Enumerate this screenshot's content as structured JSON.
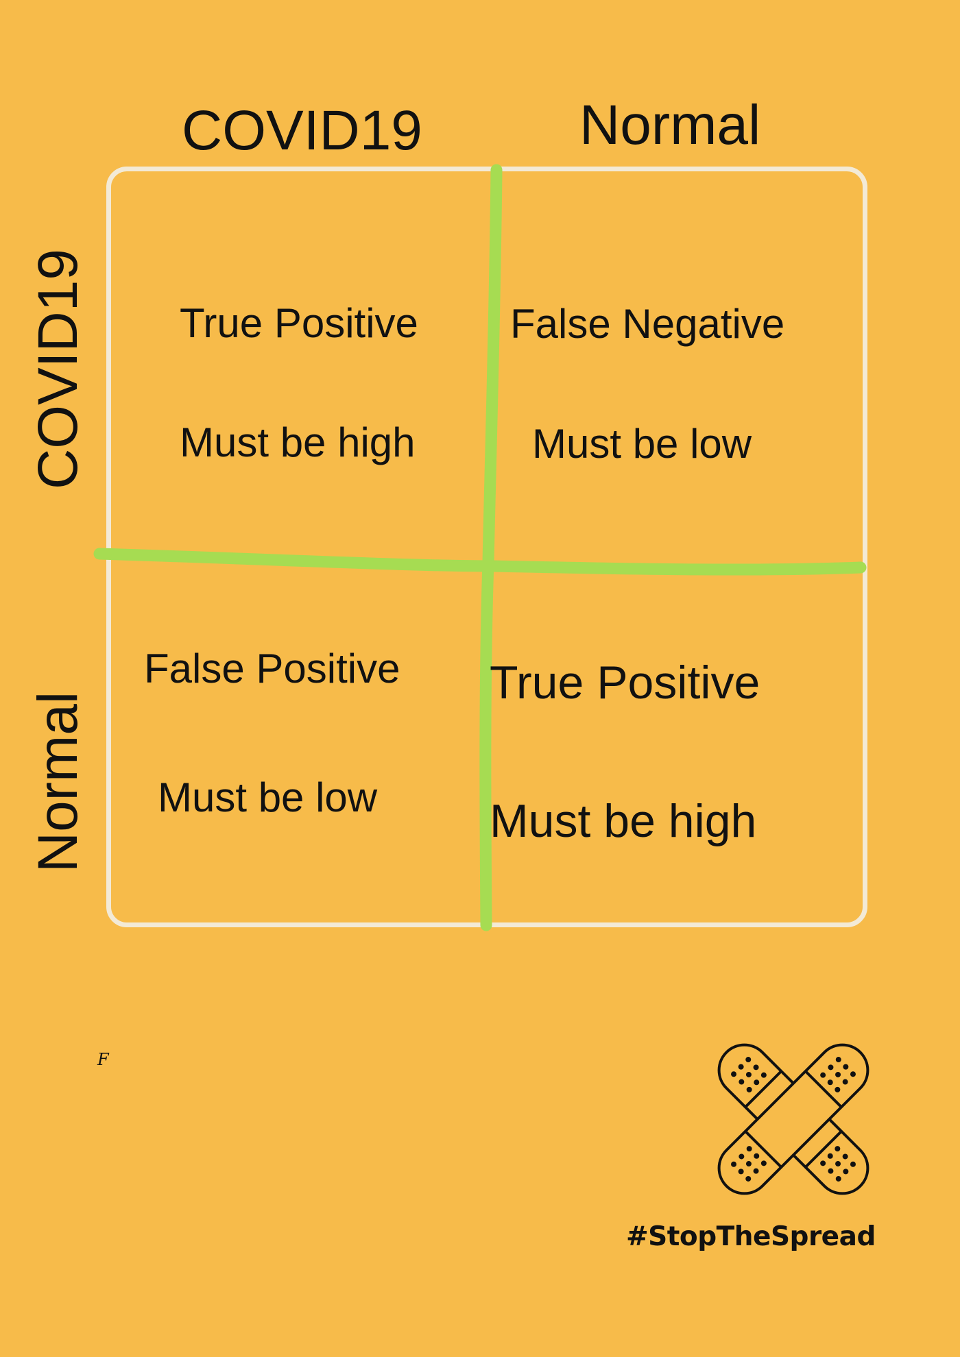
{
  "columns": {
    "covid": "COVID19",
    "normal": "Normal"
  },
  "rows": {
    "covid": "COVID19",
    "normal": "Normal"
  },
  "cells": {
    "top_left": {
      "title": "True Positive",
      "note": "Must be high"
    },
    "top_right": {
      "title": "False Negative",
      "note": "Must be low"
    },
    "bottom_left": {
      "title": "False Positive",
      "note": "Must be low"
    },
    "bottom_right": {
      "title": "True Positive",
      "note": "Must be high"
    }
  },
  "stray_mark": "F",
  "hashtag": "#StopTheSpread",
  "colors": {
    "background": "#f7bb4a",
    "divider": "#a6dc52",
    "frame": "#f3ead6",
    "text": "#111111"
  },
  "icons": [
    "crossed-bandages-icon"
  ]
}
